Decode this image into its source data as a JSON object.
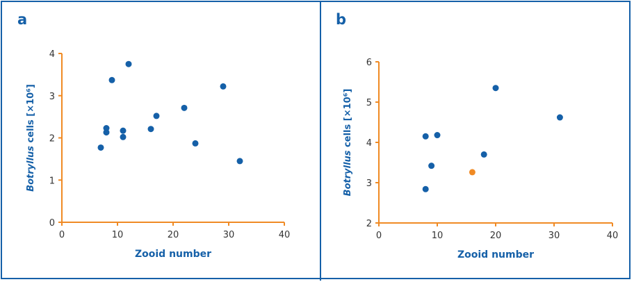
{
  "colors": {
    "axis": "#f08a24",
    "point": "#1560a8",
    "highlight": "#f08a24",
    "text": "#1560a8",
    "tick_text": "#333333"
  },
  "panels": [
    {
      "label": "a"
    },
    {
      "label": "b"
    }
  ],
  "chart_data": [
    {
      "type": "scatter",
      "panel": "a",
      "xlabel": "Zooid number",
      "ylabel_italic": "Botryllus",
      "ylabel_rest": " cells [×10⁶]",
      "xlim": [
        0,
        40
      ],
      "ylim": [
        0,
        4
      ],
      "xticks": [
        0,
        10,
        20,
        30,
        40
      ],
      "yticks": [
        0,
        1,
        2,
        3,
        4
      ],
      "grid": false,
      "points": [
        {
          "x": 7,
          "y": 1.77
        },
        {
          "x": 8,
          "y": 2.23
        },
        {
          "x": 8,
          "y": 2.13
        },
        {
          "x": 9,
          "y": 3.37
        },
        {
          "x": 11,
          "y": 2.17
        },
        {
          "x": 11,
          "y": 2.02
        },
        {
          "x": 12,
          "y": 3.75
        },
        {
          "x": 16,
          "y": 2.21
        },
        {
          "x": 17,
          "y": 2.52
        },
        {
          "x": 22,
          "y": 2.71
        },
        {
          "x": 24,
          "y": 1.87
        },
        {
          "x": 29,
          "y": 3.22
        },
        {
          "x": 32,
          "y": 1.45
        }
      ]
    },
    {
      "type": "scatter",
      "panel": "b",
      "xlabel": "Zooid number",
      "ylabel_italic": "Botryllus",
      "ylabel_rest": " cells [×10⁶]",
      "xlim": [
        0,
        40
      ],
      "ylim": [
        2,
        6
      ],
      "xticks": [
        0,
        10,
        20,
        30,
        40
      ],
      "yticks": [
        2,
        3,
        4,
        5,
        6
      ],
      "grid": false,
      "points": [
        {
          "x": 8,
          "y": 4.15
        },
        {
          "x": 8,
          "y": 2.84
        },
        {
          "x": 9,
          "y": 3.42
        },
        {
          "x": 10,
          "y": 4.18
        },
        {
          "x": 16,
          "y": 3.26,
          "highlight": true
        },
        {
          "x": 18,
          "y": 3.7
        },
        {
          "x": 20,
          "y": 5.35
        },
        {
          "x": 31,
          "y": 4.62
        }
      ]
    }
  ]
}
